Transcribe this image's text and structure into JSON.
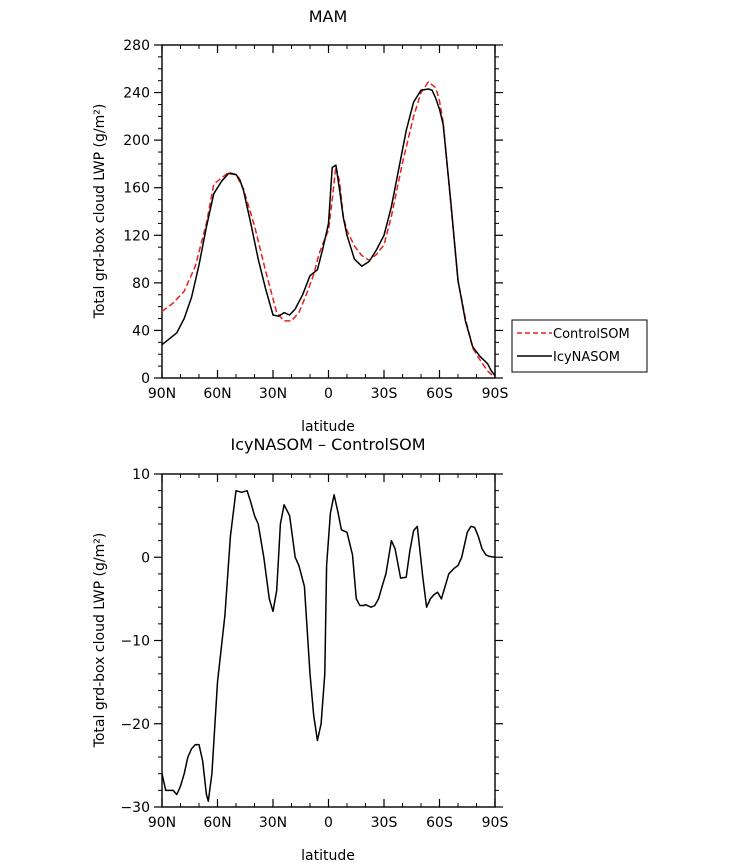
{
  "chart_data": [
    {
      "type": "line",
      "title": "MAM",
      "xlabel": "latitude",
      "ylabel": "Total grd-box cloud LWP (g/m²)",
      "xlim": [
        90,
        -90
      ],
      "ylim": [
        0,
        280
      ],
      "x_ticks": [
        {
          "value": 90,
          "label": "90N"
        },
        {
          "value": 60,
          "label": "60N"
        },
        {
          "value": 30,
          "label": "30N"
        },
        {
          "value": 0,
          "label": "0"
        },
        {
          "value": -30,
          "label": "30S"
        },
        {
          "value": -60,
          "label": "60S"
        },
        {
          "value": -90,
          "label": "90S"
        }
      ],
      "y_ticks": [
        {
          "value": 0,
          "label": "0"
        },
        {
          "value": 40,
          "label": "40"
        },
        {
          "value": 80,
          "label": "80"
        },
        {
          "value": 120,
          "label": "120"
        },
        {
          "value": 160,
          "label": "160"
        },
        {
          "value": 200,
          "label": "200"
        },
        {
          "value": 240,
          "label": "240"
        },
        {
          "value": 280,
          "label": "280"
        }
      ],
      "grid": false,
      "legend": "right",
      "series": [
        {
          "name": "ControlSOM",
          "color": "#e8201c",
          "dash": "dashed",
          "x": [
            90,
            84,
            78,
            72,
            66,
            62,
            58,
            54,
            50,
            46,
            40,
            34,
            28,
            24,
            20,
            16,
            12,
            8,
            5,
            2,
            0,
            -2,
            -4,
            -6,
            -8,
            -10,
            -14,
            -18,
            -22,
            -26,
            -30,
            -34,
            -40,
            -46,
            -50,
            -54,
            -58,
            -60,
            -62,
            -66,
            -70,
            -74,
            -78,
            -82,
            -86,
            -88,
            -90
          ],
          "y": [
            56,
            63,
            73,
            94,
            130,
            163,
            168,
            173,
            171,
            159,
            128,
            90,
            55,
            48,
            48,
            55,
            70,
            87,
            105,
            117,
            124,
            150,
            178,
            165,
            136,
            124,
            111,
            103,
            99,
            104,
            112,
            136,
            181,
            220,
            240,
            249,
            244,
            233,
            215,
            148,
            82,
            50,
            25,
            15,
            6,
            3,
            2
          ]
        },
        {
          "name": "IcyNASOM",
          "color": "#000000",
          "dash": "solid",
          "x": [
            90,
            86,
            82,
            78,
            74,
            70,
            66,
            62,
            58,
            54,
            50,
            48,
            46,
            42,
            38,
            34,
            30,
            27,
            24,
            21,
            18,
            14,
            10,
            6,
            3,
            0,
            -2,
            -4,
            -6,
            -8,
            -10,
            -14,
            -18,
            -22,
            -26,
            -30,
            -34,
            -38,
            -42,
            -46,
            -50,
            -54,
            -56,
            -58,
            -60,
            -62,
            -66,
            -70,
            -74,
            -78,
            -82,
            -86,
            -88,
            -90
          ],
          "y": [
            28,
            33,
            38,
            50,
            68,
            95,
            127,
            155,
            165,
            172,
            171,
            167,
            158,
            130,
            100,
            75,
            53,
            52,
            55,
            53,
            58,
            70,
            86,
            91,
            109,
            130,
            177,
            179,
            158,
            135,
            120,
            100,
            94,
            98,
            108,
            120,
            144,
            176,
            208,
            232,
            242,
            243,
            242,
            235,
            226,
            213,
            150,
            82,
            48,
            26,
            18,
            12,
            6,
            2
          ]
        }
      ]
    },
    {
      "type": "line",
      "title": "IcyNASOM – ControlSOM",
      "xlabel": "latitude",
      "ylabel": "Total grd-box cloud LWP (g/m²)",
      "xlim": [
        90,
        -90
      ],
      "ylim": [
        -30,
        10
      ],
      "x_ticks": [
        {
          "value": 90,
          "label": "90N"
        },
        {
          "value": 60,
          "label": "60N"
        },
        {
          "value": 30,
          "label": "30N"
        },
        {
          "value": 0,
          "label": "0"
        },
        {
          "value": -30,
          "label": "30S"
        },
        {
          "value": -60,
          "label": "60S"
        },
        {
          "value": -90,
          "label": "90S"
        }
      ],
      "y_ticks": [
        {
          "value": -30,
          "label": "−30"
        },
        {
          "value": -20,
          "label": "−20"
        },
        {
          "value": -10,
          "label": "−10"
        },
        {
          "value": 0,
          "label": "0"
        },
        {
          "value": 10,
          "label": "10"
        }
      ],
      "grid": false,
      "series": [
        {
          "name": "",
          "color": "#000000",
          "dash": "solid",
          "x": [
            90,
            88,
            86,
            84,
            82,
            80,
            78,
            76,
            74,
            72,
            70,
            68,
            66,
            65,
            63,
            60,
            58,
            56,
            53,
            50,
            47,
            44,
            42,
            40,
            38,
            35,
            32,
            30,
            28,
            26,
            24,
            21,
            18,
            16,
            13,
            10,
            8,
            6,
            4,
            2,
            1,
            -1,
            -3,
            -5,
            -7,
            -10,
            -13,
            -15,
            -17,
            -19,
            -20,
            -21,
            -23,
            -25,
            -27,
            -29,
            -31,
            -34,
            -36,
            -39,
            -42,
            -44,
            -46,
            -48,
            -51,
            -53,
            -55,
            -57,
            -59,
            -61,
            -63,
            -65,
            -68,
            -70,
            -72,
            -75,
            -77,
            -79,
            -81,
            -83,
            -85,
            -87,
            -90
          ],
          "y": [
            -26,
            -28,
            -28,
            -28,
            -28.5,
            -27.5,
            -26,
            -24,
            -23,
            -22.5,
            -22.5,
            -24.5,
            -28.5,
            -29.3,
            -26,
            -15,
            -11,
            -7,
            2.5,
            8,
            7.8,
            8,
            6.6,
            5,
            4,
            0,
            -5,
            -6.5,
            -4,
            4,
            6.3,
            5,
            0,
            -1,
            -3.5,
            -14,
            -19,
            -22,
            -20,
            -14,
            -1,
            5.3,
            7.5,
            5.5,
            3.3,
            3,
            0.3,
            -5,
            -5.8,
            -5.8,
            -5.7,
            -5.8,
            -6,
            -5.8,
            -5,
            -3.5,
            -2,
            2,
            1,
            -2.5,
            -2.4,
            0.8,
            3.2,
            3.7,
            -2.5,
            -6,
            -5,
            -4.5,
            -4.2,
            -5,
            -3.5,
            -2,
            -1.3,
            -1,
            0,
            3,
            3.7,
            3.6,
            2.5,
            1,
            0.3,
            0.1,
            0
          ]
        }
      ]
    }
  ]
}
